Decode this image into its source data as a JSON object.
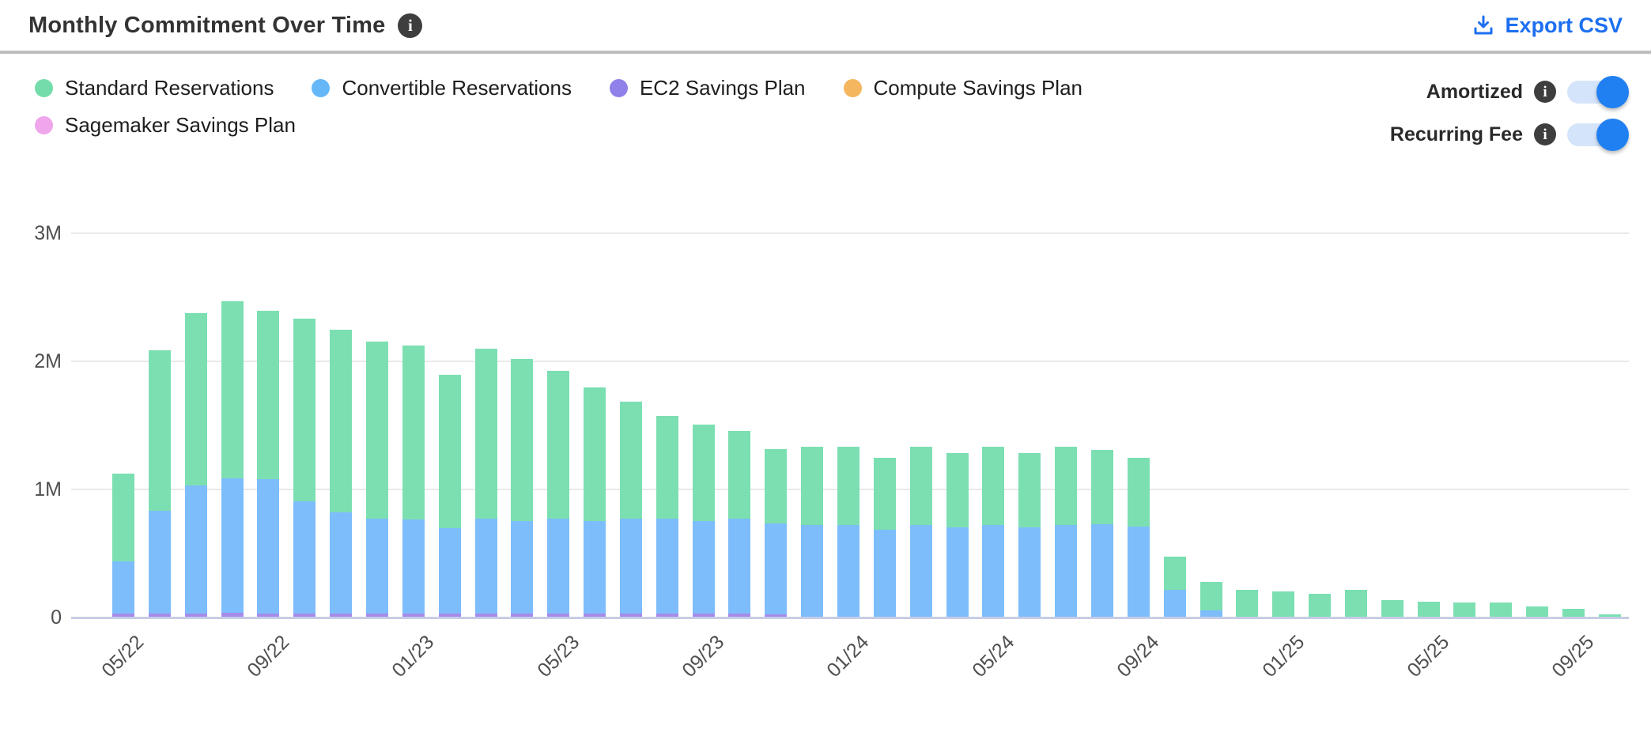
{
  "header": {
    "title": "Monthly Commitment Over Time",
    "title_info_icon": "info-icon",
    "export_label": "Export CSV",
    "export_icon": "download-icon",
    "export_color": "#1d6ff0"
  },
  "legend": {
    "items": [
      {
        "label": "Standard Reservations",
        "color": "#74dcab"
      },
      {
        "label": "Convertible Reservations",
        "color": "#66b7f8"
      },
      {
        "label": "EC2 Savings Plan",
        "color": "#8f81e9"
      },
      {
        "label": "Compute Savings Plan",
        "color": "#f4b65f"
      },
      {
        "label": "Sagemaker Savings Plan",
        "color": "#efa6ea"
      }
    ]
  },
  "toggles": [
    {
      "label": "Amortized",
      "state": "on",
      "info_icon": "info-icon"
    },
    {
      "label": "Recurring Fee",
      "state": "on",
      "info_icon": "info-icon"
    }
  ],
  "colors": {
    "toggle_on_knob": "#2080f1",
    "toggle_track": "#d4e4fa",
    "divider": "#bdbdbd",
    "gridline": "#e9e9e9",
    "axis_line": "#c7cde6",
    "axis_text": "#4f4f4f"
  },
  "chart_data": {
    "type": "bar",
    "stacked": true,
    "title": "Monthly Commitment Over Time",
    "value_unit": "M",
    "ylim": [
      0,
      3
    ],
    "y_ticks": [
      {
        "value": 0,
        "label": "0"
      },
      {
        "value": 1,
        "label": "1M"
      },
      {
        "value": 2,
        "label": "2M"
      },
      {
        "value": 3,
        "label": "3M"
      }
    ],
    "x": [
      "05/22",
      "06/22",
      "07/22",
      "08/22",
      "09/22",
      "10/22",
      "11/22",
      "12/22",
      "01/23",
      "02/23",
      "03/23",
      "04/23",
      "05/23",
      "06/23",
      "07/23",
      "08/23",
      "09/23",
      "10/23",
      "11/23",
      "12/23",
      "01/24",
      "02/24",
      "03/24",
      "04/24",
      "05/24",
      "06/24",
      "07/24",
      "08/24",
      "09/24",
      "10/24",
      "11/24",
      "12/24",
      "01/25",
      "02/25",
      "03/25",
      "04/25",
      "05/25",
      "06/25",
      "07/25",
      "08/25",
      "09/25",
      "10/25"
    ],
    "x_tick_indices": [
      0,
      4,
      8,
      12,
      16,
      20,
      24,
      28,
      32,
      36,
      40
    ],
    "x_tick_labels": [
      "05/22",
      "09/22",
      "01/23",
      "05/23",
      "09/23",
      "01/24",
      "05/24",
      "09/24",
      "01/25",
      "05/25",
      "09/25"
    ],
    "legend_position": "top-left",
    "grid": "horizontal",
    "series": [
      {
        "name": "EC2 Savings Plan",
        "color": "#a78bea",
        "stack_order": 1,
        "values": [
          0.025,
          0.025,
          0.025,
          0.025,
          0.025,
          0.025,
          0.025,
          0.025,
          0.025,
          0.025,
          0.025,
          0.025,
          0.025,
          0.025,
          0.025,
          0.025,
          0.025,
          0.025,
          0.02,
          0,
          0,
          0,
          0,
          0,
          0,
          0,
          0,
          0,
          0,
          0,
          0,
          0,
          0,
          0,
          0,
          0,
          0,
          0,
          0,
          0,
          0,
          0
        ]
      },
      {
        "name": "Convertible Reservations",
        "color": "#7dbdfb",
        "stack_order": 2,
        "values": [
          0.41,
          0.8,
          1.0,
          1.05,
          1.05,
          0.88,
          0.79,
          0.74,
          0.74,
          0.67,
          0.74,
          0.72,
          0.74,
          0.72,
          0.74,
          0.74,
          0.72,
          0.74,
          0.71,
          0.72,
          0.72,
          0.68,
          0.72,
          0.7,
          0.72,
          0.7,
          0.72,
          0.72,
          0.7,
          0.21,
          0.05,
          0,
          0,
          0,
          0,
          0,
          0,
          0,
          0,
          0,
          0,
          0
        ]
      },
      {
        "name": "Standard Reservations",
        "color": "#7cdfb2",
        "stack_order": 3,
        "values": [
          0.685,
          1.255,
          1.345,
          1.385,
          1.315,
          1.425,
          1.425,
          1.385,
          1.355,
          1.195,
          1.325,
          1.265,
          1.155,
          1.045,
          0.915,
          0.805,
          0.755,
          0.685,
          0.58,
          0.61,
          0.61,
          0.56,
          0.61,
          0.58,
          0.61,
          0.58,
          0.61,
          0.58,
          0.54,
          0.26,
          0.22,
          0.21,
          0.2,
          0.18,
          0.21,
          0.13,
          0.12,
          0.11,
          0.11,
          0.08,
          0.06,
          0.02
        ]
      },
      {
        "name": "Compute Savings Plan",
        "color": "#f4b65f",
        "stack_order": 4,
        "values": [
          0,
          0,
          0,
          0,
          0,
          0,
          0,
          0,
          0,
          0,
          0,
          0,
          0,
          0,
          0,
          0,
          0,
          0,
          0,
          0,
          0,
          0,
          0,
          0,
          0,
          0,
          0,
          0,
          0,
          0,
          0,
          0,
          0,
          0,
          0,
          0,
          0,
          0,
          0,
          0,
          0,
          0
        ]
      },
      {
        "name": "Sagemaker Savings Plan",
        "color": "#efa6ea",
        "stack_order": 5,
        "values": [
          0,
          0,
          0,
          0,
          0,
          0,
          0,
          0,
          0,
          0,
          0,
          0,
          0,
          0,
          0,
          0,
          0,
          0,
          0,
          0,
          0,
          0,
          0,
          0,
          0,
          0,
          0,
          0,
          0,
          0,
          0,
          0,
          0,
          0,
          0,
          0,
          0,
          0,
          0,
          0,
          0,
          0
        ]
      }
    ]
  }
}
